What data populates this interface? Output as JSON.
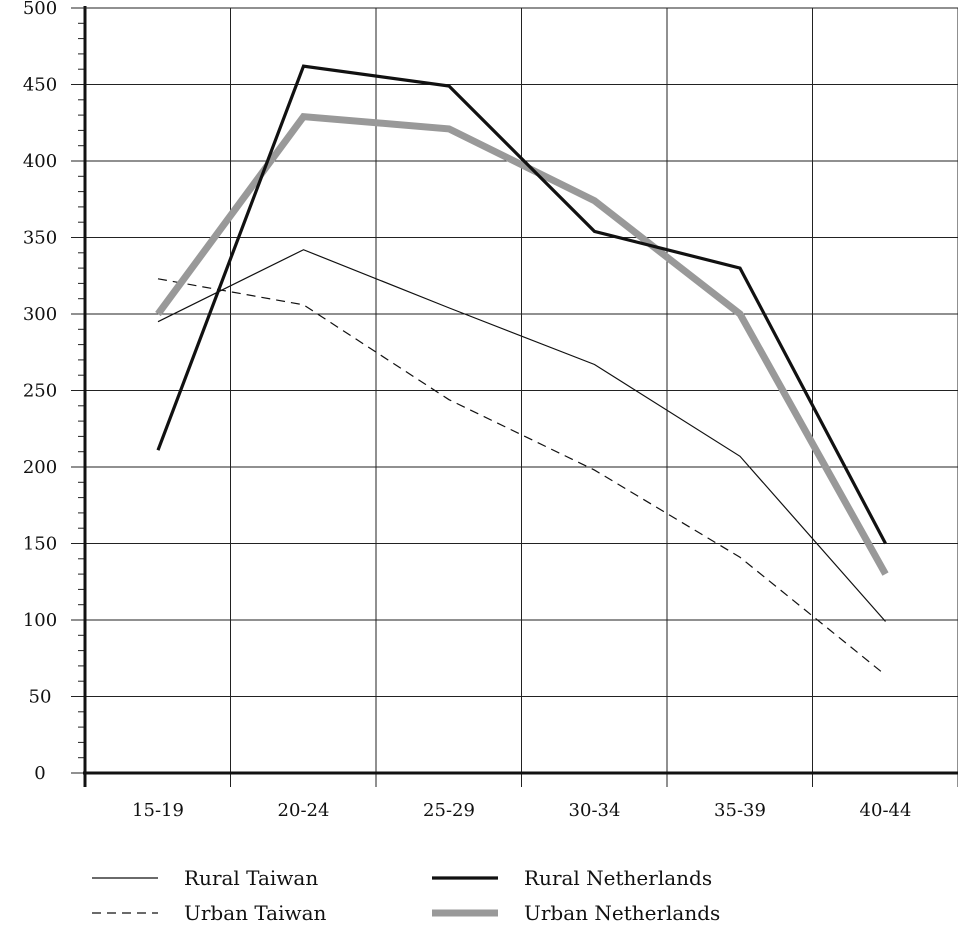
{
  "chart_data": {
    "type": "line",
    "title": "",
    "xlabel": "",
    "ylabel": "",
    "categories": [
      "15-19",
      "20-24",
      "25-29",
      "30-34",
      "35-39",
      "40-44"
    ],
    "y_ticks": [
      "0",
      "50",
      "100",
      "150",
      "200",
      "250",
      "300",
      "350",
      "400",
      "450",
      "500"
    ],
    "ylim": [
      0,
      500
    ],
    "grid": true,
    "legend_position": "bottom",
    "series": [
      {
        "name": "Rural Taiwan",
        "style": "thin-solid",
        "color": "#111111",
        "values": [
          295,
          342,
          304,
          267,
          207,
          99
        ]
      },
      {
        "name": "Urban Taiwan",
        "style": "dashed",
        "color": "#111111",
        "values": [
          323,
          306,
          244,
          198,
          141,
          64
        ]
      },
      {
        "name": "Rural Netherlands",
        "style": "thick-solid",
        "color": "#111111",
        "values": [
          211,
          462,
          449,
          354,
          330,
          150
        ]
      },
      {
        "name": "Urban Netherlands",
        "style": "heavy-gray",
        "color": "#999999",
        "values": [
          300,
          429,
          421,
          374,
          300,
          130
        ]
      }
    ]
  }
}
